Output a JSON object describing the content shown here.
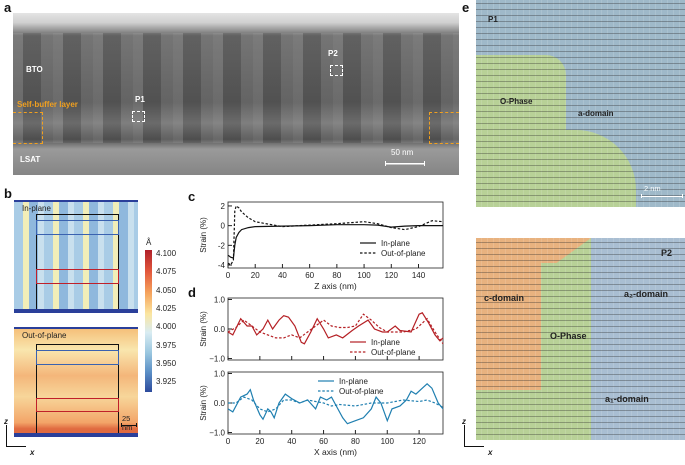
{
  "panel_a": {
    "label": "a",
    "bto": "BTO",
    "buffer": "Self-buffer layer",
    "lsat": "LSAT",
    "p1": "P1",
    "p2": "P2",
    "scale": "50 nm",
    "accent": "#f0a020"
  },
  "panel_b": {
    "label": "b",
    "in_plane": "In-plane",
    "out_of_plane": "Out-of-plane",
    "scale": "25 nm",
    "unit": "Å",
    "colorbar_ticks": [
      "4.100",
      "4.075",
      "4.050",
      "4.025",
      "4.000",
      "3.975",
      "3.950",
      "3.925"
    ],
    "axis_z": "z",
    "axis_x": "x"
  },
  "chart_data": [
    {
      "type": "line",
      "panel": "c",
      "title": "",
      "xlabel": "Z axis (nm)",
      "ylabel": "Strain (%)",
      "xlim": [
        0,
        158
      ],
      "ylim": [
        -4.3,
        2.4
      ],
      "xticks": [
        0,
        20,
        40,
        60,
        80,
        100,
        120,
        140
      ],
      "yticks": [
        -4,
        -2,
        0,
        2
      ],
      "legend": "bottom-right",
      "series": [
        {
          "name": "In-plane",
          "style": "solid",
          "color": "#111111",
          "x": [
            0,
            2,
            4,
            5,
            6,
            8,
            10,
            15,
            20,
            40,
            60,
            80,
            100,
            110,
            120,
            130,
            140,
            158
          ],
          "y": [
            -3.0,
            -3.2,
            -3.3,
            -2.0,
            -1.2,
            -0.7,
            -0.4,
            -0.2,
            -0.1,
            -0.05,
            0,
            0.1,
            0.1,
            0.05,
            -0.15,
            -0.05,
            0,
            0
          ]
        },
        {
          "name": "Out-of-plane",
          "style": "dashed",
          "color": "#111111",
          "x": [
            0,
            2,
            4,
            5,
            6,
            8,
            10,
            15,
            20,
            30,
            40,
            60,
            80,
            100,
            110,
            120,
            130,
            140,
            150,
            158
          ],
          "y": [
            -3.8,
            -4.0,
            -3.5,
            1.5,
            2.0,
            1.8,
            1.4,
            0.8,
            0.4,
            0.15,
            -0.1,
            0.05,
            0.2,
            0.4,
            0.2,
            -0.2,
            -0.4,
            -0.1,
            0.5,
            0.4
          ]
        }
      ]
    },
    {
      "type": "line",
      "panel": "d",
      "title": "",
      "xlabel": "",
      "ylabel": "Strain (%)",
      "xlim": [
        0,
        135
      ],
      "ylim": [
        -1.05,
        1.05
      ],
      "xticks": [
        0,
        20,
        40,
        60,
        80,
        100,
        120
      ],
      "yticks": [
        -1.0,
        0.0,
        1.0
      ],
      "ytick_labels": [
        "−1.0",
        "0.0",
        "1.0"
      ],
      "legend": "bottom-right",
      "series": [
        {
          "name": "In-plane",
          "style": "solid",
          "color": "#b52025",
          "x": [
            0,
            3,
            8,
            12,
            15,
            18,
            22,
            25,
            28,
            32,
            35,
            38,
            42,
            46,
            48,
            52,
            56,
            60,
            63,
            68,
            72,
            78,
            82,
            88,
            92,
            97,
            100,
            105,
            108,
            115,
            120,
            122,
            126,
            130,
            133,
            135
          ],
          "y": [
            -0.1,
            -0.2,
            0.35,
            0.1,
            0.1,
            -0.2,
            0,
            0.3,
            0,
            0.3,
            0.45,
            0.4,
            0.1,
            -0.45,
            -0.5,
            -0.1,
            0.35,
            0,
            -0.3,
            -0.2,
            -0.3,
            -0.05,
            0.1,
            0.3,
            0,
            -0.1,
            -0.1,
            0.1,
            -0.05,
            -0.1,
            0.5,
            0.55,
            0.2,
            -0.2,
            -0.4,
            -0.3
          ]
        },
        {
          "name": "Out-of-plane",
          "style": "dashed",
          "color": "#b52025",
          "x": [
            0,
            5,
            10,
            15,
            20,
            25,
            30,
            35,
            40,
            45,
            50,
            55,
            60,
            65,
            70,
            75,
            80,
            85,
            90,
            95,
            100,
            110,
            118,
            125,
            130,
            135
          ],
          "y": [
            -0.1,
            0.05,
            0.3,
            0.1,
            -0.1,
            -0.2,
            -0.3,
            -0.3,
            -0.2,
            -0.3,
            -0.1,
            0.1,
            0.3,
            0.1,
            0.05,
            0.05,
            0.1,
            0.5,
            0.3,
            0.05,
            -0.1,
            -0.1,
            0,
            0.35,
            -0.1,
            -0.5
          ]
        }
      ]
    },
    {
      "type": "line",
      "panel": "d",
      "title": "",
      "xlabel": "X axis (nm)",
      "ylabel": "Strain (%)",
      "xlim": [
        0,
        135
      ],
      "ylim": [
        -1.05,
        1.05
      ],
      "xticks": [
        0,
        20,
        40,
        60,
        80,
        100,
        120
      ],
      "yticks": [
        -1.0,
        0.0,
        1.0
      ],
      "ytick_labels": [
        "−1.0",
        "0.0",
        "1.0"
      ],
      "legend": "top",
      "series": [
        {
          "name": "In-plane",
          "style": "solid",
          "color": "#1f7fb0",
          "x": [
            0,
            3,
            8,
            12,
            14,
            16,
            20,
            22,
            25,
            27,
            29,
            32,
            36,
            40,
            45,
            50,
            55,
            58,
            62,
            65,
            68,
            72,
            75,
            80,
            85,
            90,
            93,
            96,
            100,
            103,
            108,
            112,
            115,
            118,
            122,
            125,
            128,
            132,
            135
          ],
          "y": [
            -0.2,
            -0.3,
            0.2,
            0.3,
            0.45,
            0.1,
            -0.4,
            -0.55,
            -0.2,
            -0.3,
            -0.5,
            0,
            0.3,
            0.15,
            0,
            0.1,
            -0.2,
            0.2,
            0.1,
            0.2,
            -0.1,
            -0.5,
            -0.7,
            -0.6,
            -0.5,
            -0.2,
            0.2,
            0,
            -0.6,
            -0.2,
            -0.1,
            0.1,
            0.4,
            0.3,
            0.5,
            0.65,
            0.5,
            0,
            -0.2
          ]
        },
        {
          "name": "Out-of-plane",
          "style": "dashed",
          "color": "#1f7fb0",
          "x": [
            0,
            5,
            10,
            15,
            20,
            25,
            30,
            35,
            40,
            45,
            50,
            55,
            60,
            65,
            70,
            80,
            90,
            100,
            110,
            120,
            125,
            130,
            135
          ],
          "y": [
            0,
            0,
            0.2,
            0.1,
            -0.2,
            -0.3,
            -0.2,
            0.1,
            0.1,
            0,
            0.1,
            0.05,
            0,
            -0.1,
            -0.05,
            -0.1,
            0,
            0,
            0.1,
            0.05,
            0.1,
            0,
            -0.15
          ]
        }
      ]
    }
  ],
  "panel_c": {
    "label": "c"
  },
  "panel_d": {
    "label": "d"
  },
  "panel_e": {
    "label": "e",
    "p1": "P1",
    "p2": "P2",
    "o_phase": "O-Phase",
    "a_domain": "a-domain",
    "c_domain": "c-domain",
    "a2_domain": "a₂-domain",
    "a1_domain": "a₁-domain",
    "scale": "2 nm",
    "axis_z": "z",
    "axis_x": "x"
  }
}
